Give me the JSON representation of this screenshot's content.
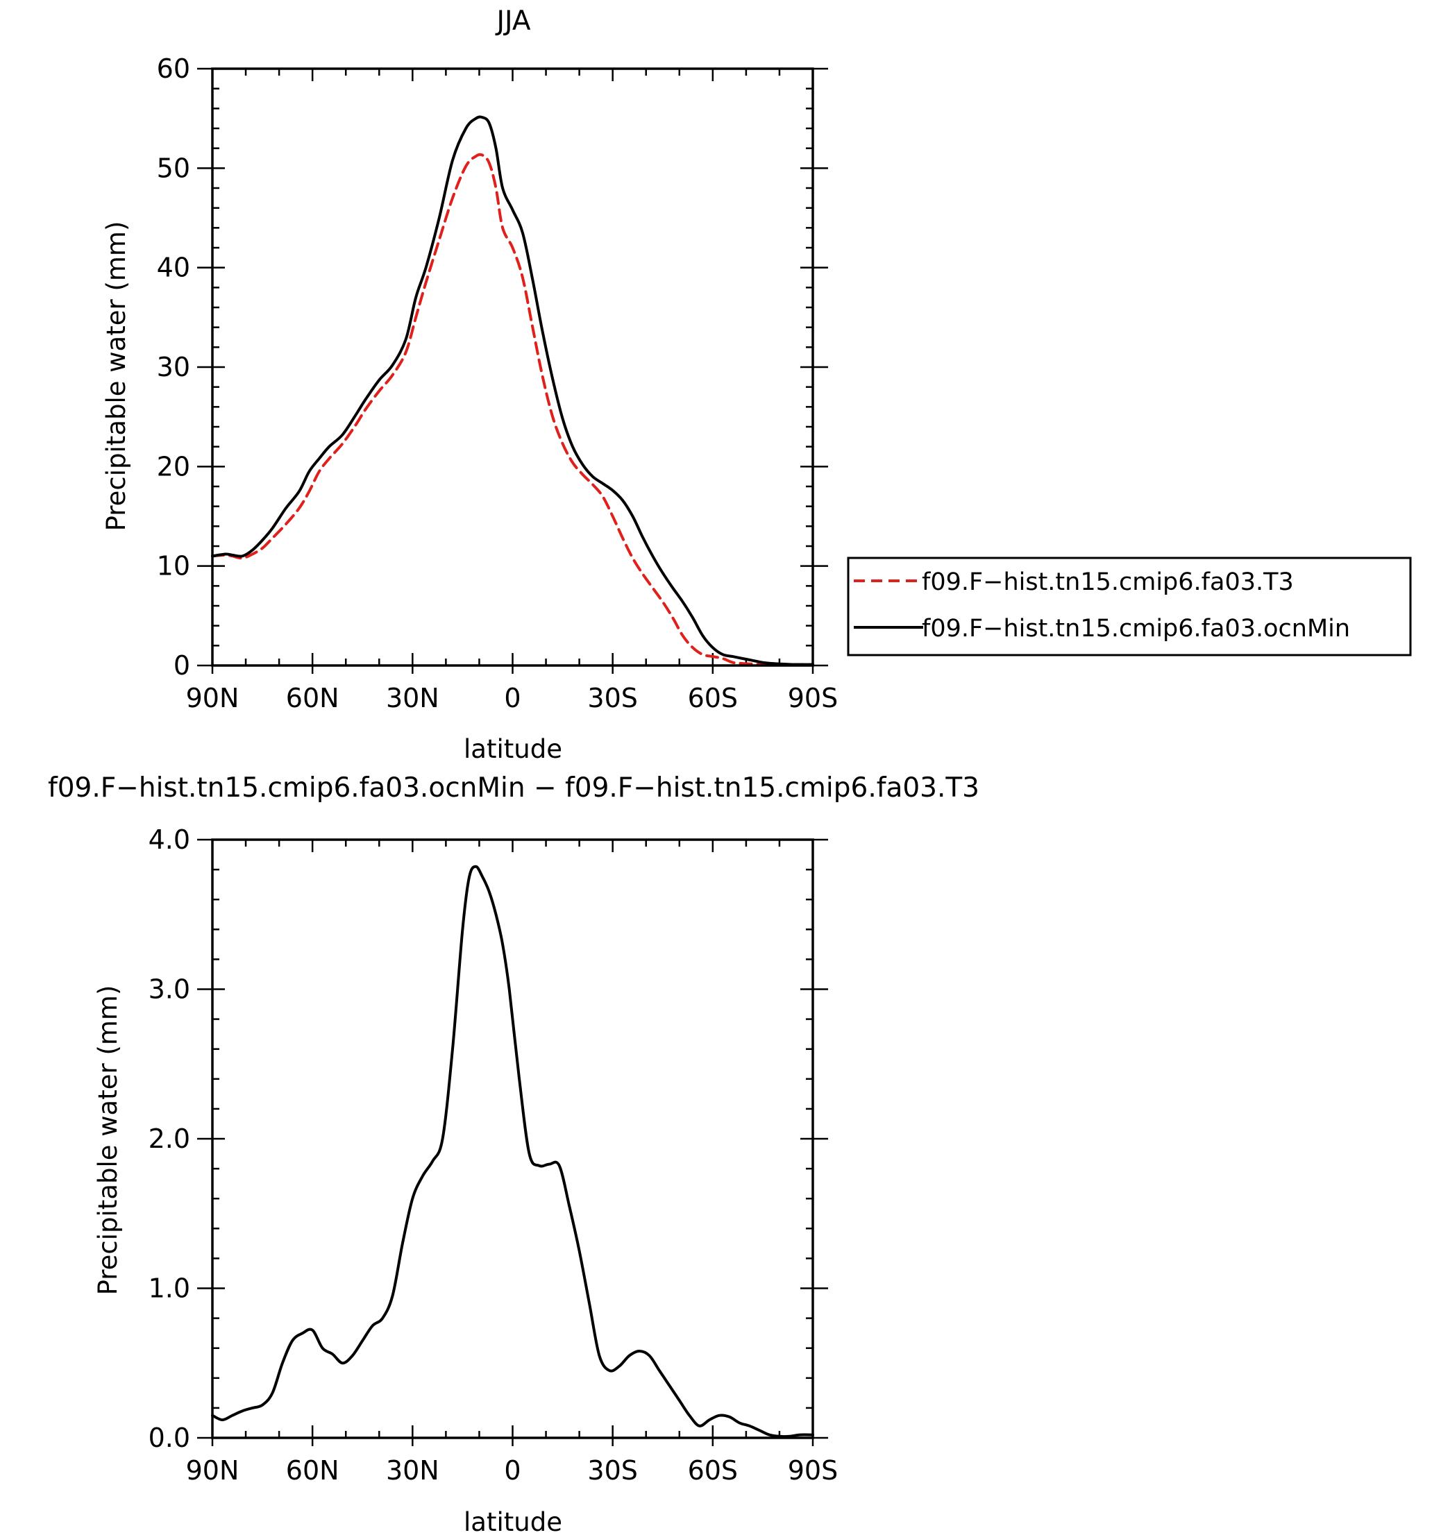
{
  "chart_data": [
    {
      "type": "line",
      "title": "JJA",
      "xlabel": "latitude",
      "ylabel": "Precipitable water (mm)",
      "xlim": [
        90,
        -90
      ],
      "ylim": [
        0,
        60
      ],
      "xticks": [
        90,
        60,
        30,
        0,
        -30,
        -60,
        -90
      ],
      "xticklabels": [
        "90N",
        "60N",
        "30N",
        "0",
        "30S",
        "60S",
        "90S"
      ],
      "yticks": [
        0,
        10,
        20,
        30,
        40,
        50,
        60
      ],
      "yticklabels": [
        "0",
        "10",
        "20",
        "30",
        "40",
        "50",
        "60"
      ],
      "legend_position": "right",
      "series": [
        {
          "name": "f09.F−hist.tn15.cmip6.fa03.T3",
          "color": "#e0201b",
          "dash": "dashed",
          "x": [
            90,
            86,
            84,
            81,
            78,
            75,
            72,
            68,
            64,
            61,
            58,
            55,
            51,
            47,
            44,
            40,
            36,
            32,
            29,
            26,
            22,
            18,
            14,
            11,
            9,
            7,
            5,
            3,
            0,
            -3,
            -6,
            -9,
            -12,
            -15,
            -18,
            -21,
            -24,
            -27,
            -30,
            -33,
            -36,
            -39,
            -42,
            -45,
            -48,
            -51,
            -54,
            -57,
            -60,
            -63,
            -66,
            -69,
            -72,
            -75,
            -78,
            -81,
            -84,
            -87,
            -90
          ],
          "y": [
            11.0,
            11.1,
            11.0,
            10.8,
            11.2,
            11.8,
            12.8,
            14.2,
            15.8,
            17.5,
            19.5,
            20.8,
            22.3,
            24.2,
            25.8,
            27.6,
            29.2,
            31.5,
            35.0,
            38.5,
            42.8,
            47.0,
            50.2,
            51.2,
            51.3,
            50.5,
            48.0,
            44.0,
            42.0,
            39.0,
            34.0,
            29.0,
            25.0,
            22.3,
            20.4,
            19.2,
            18.2,
            17.0,
            15.0,
            12.8,
            10.8,
            9.2,
            7.8,
            6.4,
            4.8,
            3.0,
            1.8,
            1.1,
            0.9,
            0.7,
            0.3,
            0.2,
            0.15,
            0.1,
            0.1,
            0.1,
            0.1,
            0.1,
            0.1
          ]
        },
        {
          "name": "f09.F−hist.tn15.cmip6.fa03.ocnMin",
          "color": "#000000",
          "dash": "solid",
          "x": [
            90,
            86,
            84,
            81,
            78,
            75,
            72,
            68,
            64,
            61,
            58,
            55,
            51,
            47,
            44,
            40,
            36,
            32,
            29,
            26,
            22,
            18,
            14,
            11,
            9,
            7,
            5,
            3,
            0,
            -3,
            -6,
            -9,
            -12,
            -15,
            -18,
            -21,
            -24,
            -27,
            -30,
            -33,
            -36,
            -39,
            -42,
            -45,
            -48,
            -51,
            -54,
            -57,
            -60,
            -63,
            -66,
            -69,
            -72,
            -75,
            -78,
            -81,
            -84,
            -87,
            -90
          ],
          "y": [
            11.0,
            11.2,
            11.1,
            11.0,
            11.6,
            12.6,
            13.8,
            15.8,
            17.5,
            19.5,
            20.8,
            22.0,
            23.2,
            25.2,
            26.8,
            28.7,
            30.2,
            32.8,
            37.0,
            40.0,
            45.0,
            50.8,
            54.0,
            55.0,
            55.1,
            54.5,
            52.0,
            48.0,
            45.8,
            43.5,
            38.8,
            33.5,
            28.8,
            24.8,
            22.0,
            20.2,
            19.0,
            18.3,
            17.6,
            16.6,
            15.0,
            12.9,
            11.0,
            9.3,
            7.8,
            6.4,
            4.8,
            3.0,
            1.8,
            1.1,
            0.9,
            0.7,
            0.5,
            0.3,
            0.2,
            0.15,
            0.1,
            0.1,
            0.1
          ]
        }
      ]
    },
    {
      "type": "line",
      "title": "f09.F−hist.tn15.cmip6.fa03.ocnMin − f09.F−hist.tn15.cmip6.fa03.T3",
      "xlabel": "latitude",
      "ylabel": "Precipitable water (mm)",
      "xlim": [
        90,
        -90
      ],
      "ylim": [
        0,
        4
      ],
      "xticks": [
        90,
        60,
        30,
        0,
        -30,
        -60,
        -90
      ],
      "xticklabels": [
        "90N",
        "60N",
        "30N",
        "0",
        "30S",
        "60S",
        "90S"
      ],
      "yticks": [
        0,
        1,
        2,
        3,
        4
      ],
      "yticklabels": [
        "0.0",
        "1.0",
        "2.0",
        "3.0",
        "4.0"
      ],
      "series": [
        {
          "color": "#000000",
          "dash": "solid",
          "x": [
            90,
            87,
            84,
            81,
            78,
            75,
            72,
            69,
            66,
            63,
            60,
            57,
            54,
            51,
            48,
            45,
            42,
            39,
            36,
            33,
            30,
            27,
            24,
            21,
            18,
            15,
            13,
            11,
            9,
            7,
            5,
            3,
            1,
            -2,
            -5,
            -8,
            -11,
            -14,
            -17,
            -20,
            -23,
            -26,
            -29,
            -32,
            -35,
            -38,
            -41,
            -44,
            -47,
            -50,
            -53,
            -56,
            -59,
            -62,
            -65,
            -68,
            -71,
            -74,
            -77,
            -80,
            -83,
            -86,
            -90
          ],
          "y": [
            0.15,
            0.12,
            0.15,
            0.18,
            0.2,
            0.22,
            0.3,
            0.5,
            0.65,
            0.7,
            0.72,
            0.6,
            0.56,
            0.5,
            0.55,
            0.65,
            0.75,
            0.8,
            0.95,
            1.3,
            1.6,
            1.75,
            1.85,
            2.0,
            2.6,
            3.4,
            3.75,
            3.82,
            3.75,
            3.65,
            3.5,
            3.3,
            3.0,
            2.4,
            1.9,
            1.82,
            1.83,
            1.82,
            1.55,
            1.25,
            0.9,
            0.55,
            0.45,
            0.48,
            0.55,
            0.58,
            0.55,
            0.45,
            0.35,
            0.25,
            0.15,
            0.08,
            0.12,
            0.15,
            0.14,
            0.1,
            0.08,
            0.05,
            0.02,
            0.01,
            0.01,
            0.02,
            0.02
          ]
        }
      ]
    }
  ]
}
